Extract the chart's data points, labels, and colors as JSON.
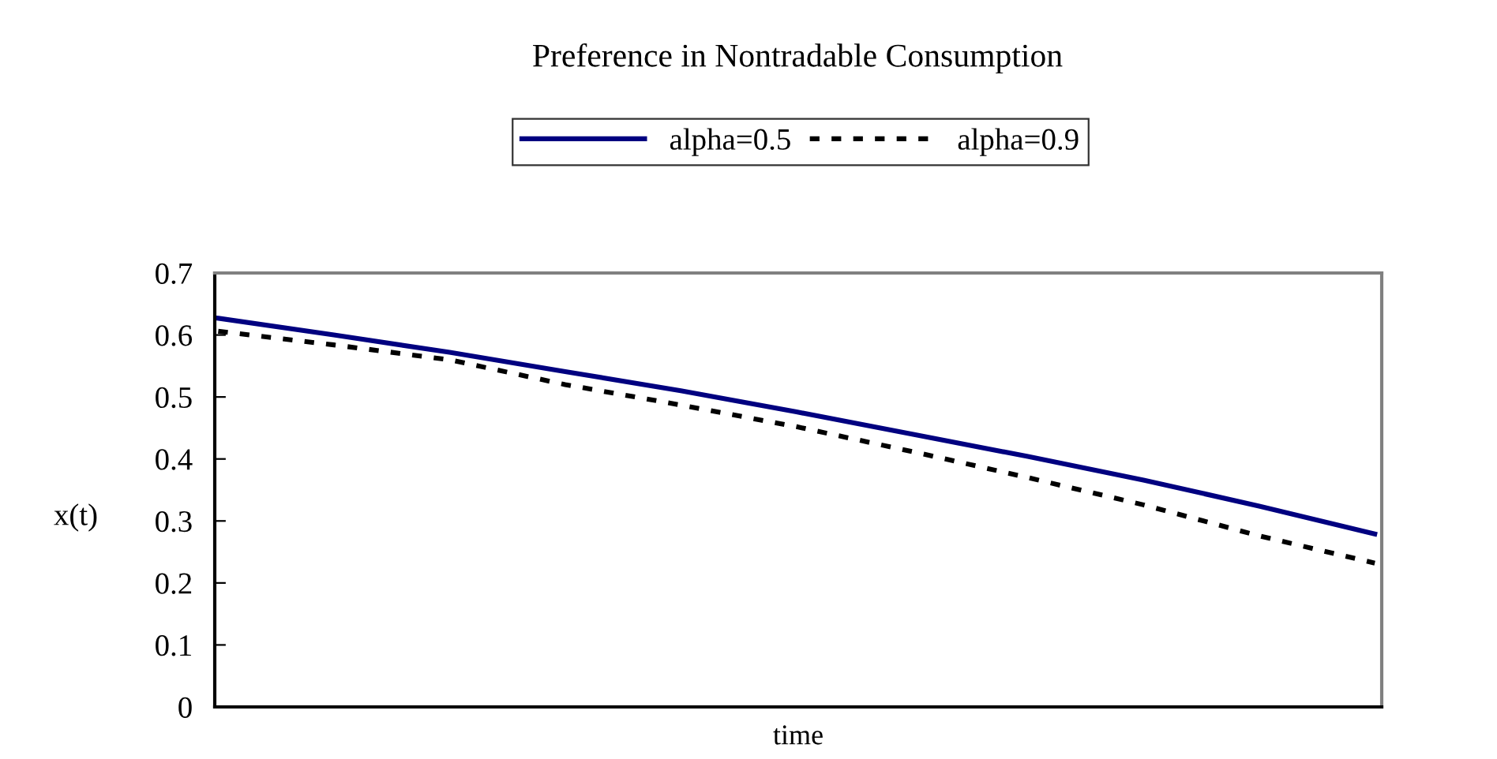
{
  "chart_data": {
    "type": "line",
    "title": "Preference in Nontradable Consumption",
    "xlabel": "time",
    "ylabel": "x(t)",
    "categories": [
      null,
      null,
      null,
      null,
      null,
      null,
      null,
      null,
      null,
      null,
      null
    ],
    "series": [
      {
        "name": "alpha=0.5",
        "color": "#000080",
        "line_style": "solid",
        "values": [
          0.627,
          0.6,
          0.572,
          0.541,
          0.51,
          0.476,
          0.44,
          0.404,
          0.366,
          0.324,
          0.279
        ]
      },
      {
        "name": "alpha=0.9",
        "color": "#000000",
        "line_style": "dotted",
        "values": [
          0.606,
          0.584,
          0.56,
          0.52,
          0.487,
          0.452,
          0.412,
          0.37,
          0.326,
          0.276,
          0.232
        ]
      }
    ],
    "ylim": [
      0,
      0.7
    ],
    "yticks": [
      0,
      0.1,
      0.2,
      0.3,
      0.4,
      0.5,
      0.6,
      0.7
    ],
    "tick_labels": "y",
    "grid": false,
    "legend": "top",
    "marker": "none"
  }
}
